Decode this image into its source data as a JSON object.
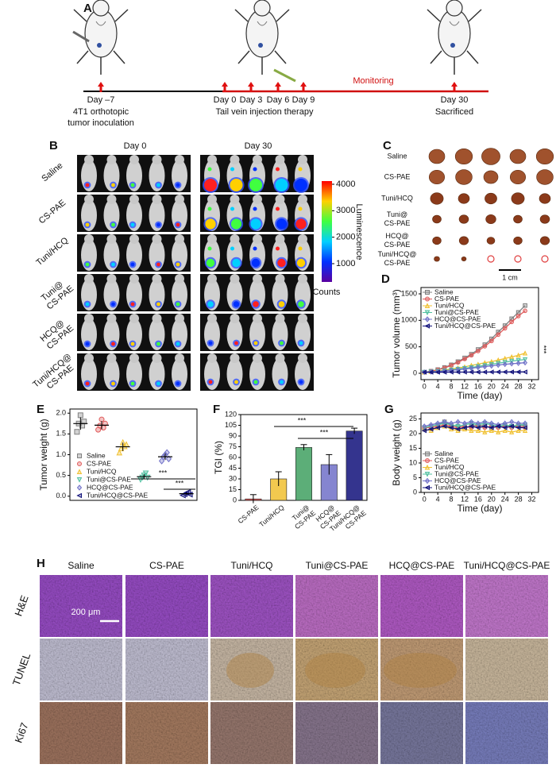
{
  "panel_a": {
    "label": "A",
    "days": [
      "Day –7",
      "Day 0",
      "Day 3",
      "Day 6",
      "Day 9",
      "Day 30"
    ],
    "inoculation": [
      "4T1 orthotopic",
      "tumor inoculation"
    ],
    "therapy": "Tail vein injection therapy",
    "end": "Sacrificed",
    "monitoring": "Monitoring"
  },
  "panel_b": {
    "label": "B",
    "columns": [
      "Day 0",
      "Day 30"
    ],
    "rows": [
      [
        "Saline"
      ],
      [
        "CS-PAE"
      ],
      [
        "Tuni/HCQ"
      ],
      [
        "Tuni@",
        "CS-PAE"
      ],
      [
        "HCQ@",
        "CS-PAE"
      ],
      [
        "Tuni/HCQ@",
        "CS-PAE"
      ]
    ],
    "colorbar": {
      "title": "Luminescence",
      "unit": "Counts",
      "lim": [
        310,
        4120
      ],
      "ticks": [
        1000,
        2000,
        3000,
        4000
      ]
    }
  },
  "panel_c": {
    "label": "C",
    "rows": [
      [
        "Saline"
      ],
      [
        "CS-PAE"
      ],
      [
        "Tuni/HCQ"
      ],
      [
        "Tuni@",
        "CS-PAE"
      ],
      [
        "HCQ@",
        "CS-PAE"
      ],
      [
        "Tuni/HCQ@",
        "CS-PAE"
      ]
    ],
    "scale_bar": "1 cm"
  },
  "chart_data": [
    {
      "label": "D",
      "type": "line",
      "xlabel": "Time (day)",
      "ylabel": "Tumor volume (mm³)",
      "x": [
        0,
        2,
        4,
        6,
        8,
        10,
        12,
        14,
        16,
        18,
        20,
        22,
        24,
        26,
        28,
        30
      ],
      "xlim": [
        -1,
        34
      ],
      "xticks": [
        0,
        4,
        8,
        12,
        16,
        20,
        24,
        28,
        32
      ],
      "ylim": [
        -120,
        1620
      ],
      "yticks": [
        0,
        500,
        1000,
        1500
      ],
      "legend": "upper left",
      "annotations": [
        "***"
      ],
      "series": [
        {
          "name": "Saline",
          "color": "#808080",
          "marker": "square",
          "values": [
            20,
            40,
            70,
            110,
            160,
            220,
            290,
            360,
            450,
            540,
            650,
            780,
            900,
            1030,
            1150,
            1280
          ]
        },
        {
          "name": "CS-PAE",
          "color": "#e05a5a",
          "marker": "circle",
          "values": [
            20,
            38,
            65,
            100,
            150,
            205,
            270,
            340,
            420,
            510,
            610,
            730,
            850,
            970,
            1080,
            1180
          ]
        },
        {
          "name": "Tuni/HCQ",
          "color": "#f0c030",
          "marker": "triangle",
          "values": [
            20,
            30,
            45,
            60,
            80,
            100,
            120,
            150,
            170,
            200,
            220,
            250,
            280,
            310,
            340,
            380
          ]
        },
        {
          "name": "Tuni@CS-PAE",
          "color": "#50c0a0",
          "marker": "triangle-down",
          "values": [
            20,
            28,
            38,
            50,
            65,
            80,
            95,
            110,
            130,
            150,
            170,
            190,
            210,
            230,
            245,
            260
          ]
        },
        {
          "name": "HCQ@CS-PAE",
          "color": "#7070c8",
          "marker": "diamond",
          "values": [
            20,
            26,
            34,
            44,
            55,
            68,
            80,
            95,
            110,
            125,
            140,
            155,
            170,
            180,
            190,
            200
          ]
        },
        {
          "name": "Tuni/HCQ@CS-PAE",
          "color": "#10107a",
          "marker": "triangle-left",
          "values": [
            20,
            20,
            21,
            21,
            22,
            22,
            22,
            23,
            23,
            23,
            24,
            24,
            24,
            25,
            25,
            25
          ]
        }
      ]
    },
    {
      "label": "E",
      "type": "dot",
      "ylabel": "Tumor weight (g)",
      "ylim": [
        -0.1,
        2.1
      ],
      "yticks": [
        {
          "value": 0,
          "label": "0.0"
        },
        {
          "value": 0.5,
          "label": "0.5"
        },
        {
          "value": 1,
          "label": "1.0"
        },
        {
          "value": 1.5,
          "label": "1.5"
        },
        {
          "value": 2,
          "label": "2.0"
        }
      ],
      "legend": "lower left",
      "annotations": [
        "***",
        "***"
      ],
      "series": [
        {
          "name": "Saline",
          "color": "#808080",
          "marker": "square",
          "values": [
            1.55,
            1.75,
            1.95,
            1.7,
            1.8
          ],
          "mean": 1.75,
          "sd": 0.15
        },
        {
          "name": "CS-PAE",
          "color": "#e05a5a",
          "marker": "circle",
          "values": [
            1.6,
            1.7,
            1.85,
            1.65,
            1.75
          ],
          "mean": 1.71,
          "sd": 0.1
        },
        {
          "name": "Tuni/HCQ",
          "color": "#f0c030",
          "marker": "triangle",
          "values": [
            1.05,
            1.15,
            1.3,
            1.2,
            1.25
          ],
          "mean": 1.19,
          "sd": 0.1
        },
        {
          "name": "Tuni@CS-PAE",
          "color": "#50c0a0",
          "marker": "triangle-down",
          "values": [
            0.4,
            0.45,
            0.5,
            0.55,
            0.45
          ],
          "mean": 0.47,
          "sd": 0.06
        },
        {
          "name": "HCQ@CS-PAE",
          "color": "#7070c8",
          "marker": "diamond",
          "values": [
            0.85,
            0.95,
            1.0,
            1.05,
            0.9
          ],
          "mean": 0.95,
          "sd": 0.08
        },
        {
          "name": "Tuni/HCQ@CS-PAE",
          "color": "#10107a",
          "marker": "triangle-left",
          "values": [
            0.02,
            0.05,
            0.08,
            0.1,
            0.04
          ],
          "mean": 0.06,
          "sd": 0.03
        }
      ]
    },
    {
      "label": "F",
      "type": "bar",
      "ylabel": "TGI (%)",
      "categories": [
        [
          "CS-PAE"
        ],
        [
          "Tuni/HCQ"
        ],
        [
          "Tuni@",
          "CS-PAE"
        ],
        [
          "HCQ@",
          "CS-PAE"
        ],
        [
          "Tuni/HCQ@",
          "CS-PAE"
        ]
      ],
      "values": [
        2,
        30,
        74,
        50,
        97
      ],
      "errors": [
        6,
        10,
        4,
        14,
        4
      ],
      "colors": [
        "#e04040",
        "#f0c030",
        "#40a060",
        "#7070c8",
        "#10107a"
      ],
      "ylim": [
        0,
        120
      ],
      "yticks": [
        0,
        15,
        30,
        45,
        60,
        75,
        90,
        105,
        120
      ],
      "annotations": [
        "***",
        "***"
      ]
    },
    {
      "label": "G",
      "type": "line",
      "xlabel": "Time (day)",
      "ylabel": "Body weight (g)",
      "x": [
        0,
        2,
        4,
        6,
        8,
        10,
        12,
        14,
        16,
        18,
        20,
        22,
        24,
        26,
        28,
        30
      ],
      "xlim": [
        -1,
        34
      ],
      "xticks": [
        0,
        4,
        8,
        12,
        16,
        20,
        24,
        28,
        32
      ],
      "ylim": [
        0,
        27
      ],
      "yticks": [
        0,
        5,
        10,
        15,
        20,
        25
      ],
      "legend": "lower left",
      "series": [
        {
          "name": "Saline",
          "color": "#808080",
          "marker": "square",
          "values": [
            22,
            22.5,
            23,
            24,
            23,
            22.5,
            22,
            22.5,
            23,
            22.5,
            22,
            22.5,
            23,
            22.5,
            23,
            22.5
          ]
        },
        {
          "name": "CS-PAE",
          "color": "#e05a5a",
          "marker": "circle",
          "values": [
            22,
            22,
            22.5,
            23,
            22.5,
            22,
            22.5,
            22,
            22.5,
            22,
            22.5,
            22,
            22.5,
            22,
            22.5,
            22
          ]
        },
        {
          "name": "Tuni/HCQ",
          "color": "#f0c030",
          "marker": "triangle",
          "values": [
            21.5,
            21,
            22,
            22.5,
            21.5,
            21,
            21.5,
            21,
            21,
            20.5,
            21,
            20.5,
            21,
            20.5,
            21,
            21
          ]
        },
        {
          "name": "Tuni@CS-PAE",
          "color": "#50c0a0",
          "marker": "triangle-down",
          "values": [
            22,
            22.5,
            23,
            23.5,
            23,
            22.5,
            23,
            23.5,
            23,
            23.5,
            23,
            22.5,
            23,
            22.5,
            23,
            23
          ]
        },
        {
          "name": "HCQ@CS-PAE",
          "color": "#7070c8",
          "marker": "diamond",
          "values": [
            22.5,
            23,
            23.5,
            24,
            23.5,
            24,
            23.5,
            24,
            23.5,
            24,
            23.5,
            23,
            23.5,
            24,
            23.5,
            23.5
          ]
        },
        {
          "name": "Tuni/HCQ@CS-PAE",
          "color": "#10107a",
          "marker": "triangle-left",
          "values": [
            21,
            21.5,
            22,
            22.5,
            22,
            21.5,
            22,
            22.5,
            22,
            22.5,
            22,
            22.5,
            22,
            22.5,
            22,
            22
          ]
        }
      ]
    }
  ],
  "panel_h": {
    "label": "H",
    "columns": [
      "Saline",
      "CS-PAE",
      "Tuni/HCQ",
      "Tuni@CS-PAE",
      "HCQ@CS-PAE",
      "Tuni/HCQ@CS-PAE"
    ],
    "rows": [
      "H&E",
      "TUNEL",
      "Ki67"
    ],
    "scale_bar": "200 μm"
  }
}
